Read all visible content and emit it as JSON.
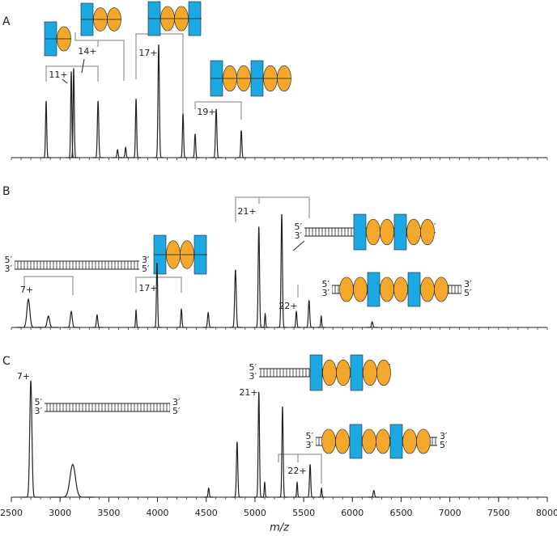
{
  "chart_data": [
    {
      "type": "spectrum",
      "panel_label": "A",
      "xlim": [
        2500,
        8000
      ],
      "ylim": [
        0,
        105
      ],
      "x": [
        2857,
        3115,
        3140,
        3390,
        3590,
        3673,
        3780,
        4012,
        4262,
        4386,
        4602,
        4860
      ],
      "values": [
        50,
        76,
        79,
        50,
        7,
        9,
        52,
        100,
        39,
        21,
        43,
        24
      ],
      "widths": [
        12,
        12,
        12,
        14,
        12,
        12,
        12,
        14,
        12,
        12,
        14,
        12
      ],
      "annotations": [
        "11+",
        "14+",
        "17+",
        "19+"
      ],
      "strand_labels": []
    },
    {
      "type": "spectrum",
      "panel_label": "B",
      "xlim": [
        2500,
        8000
      ],
      "ylim": [
        0,
        105
      ],
      "x": [
        2675,
        2880,
        3115,
        3380,
        3780,
        3995,
        4245,
        4520,
        4800,
        5040,
        5105,
        5275,
        5425,
        5555,
        5680,
        6203
      ],
      "values": [
        25,
        10,
        14,
        11,
        15,
        57,
        16,
        13,
        51,
        89,
        12,
        100,
        14,
        24,
        10,
        5
      ],
      "widths": [
        30,
        25,
        20,
        14,
        10,
        12,
        12,
        14,
        16,
        14,
        10,
        14,
        12,
        14,
        10,
        14
      ],
      "annotations": [
        "7+",
        "17+",
        "21+",
        "22+"
      ],
      "strand_labels": [
        [
          "5′",
          "3′",
          "3′",
          "5′"
        ],
        [
          "5′",
          "3′",
          "3′",
          "5′"
        ],
        [
          "5′",
          "3′",
          "3′",
          "5′"
        ]
      ]
    },
    {
      "type": "spectrum",
      "panel_label": "C",
      "xlim": [
        2500,
        8000
      ],
      "ylim": [
        0,
        105
      ],
      "x": [
        2700,
        3130,
        4525,
        4817,
        5040,
        5100,
        5283,
        5433,
        5566,
        5683,
        6220
      ],
      "values": [
        103,
        29,
        8,
        49,
        93,
        13,
        80,
        13,
        29,
        8,
        6
      ],
      "widths": [
        22,
        55,
        12,
        14,
        13,
        10,
        13,
        10,
        13,
        10,
        14
      ],
      "annotations": [
        "7+",
        "21+",
        "22+"
      ],
      "strand_labels": [
        [
          "5′",
          "3′",
          "3′",
          "5′"
        ],
        [
          "5′",
          "3′",
          "3′",
          "5′"
        ],
        [
          "5′",
          "3′",
          "3′",
          "5′"
        ]
      ],
      "xticks": [
        2500,
        3000,
        3500,
        4000,
        4500,
        5000,
        5500,
        6000,
        6500,
        7000,
        7500,
        8000
      ],
      "xlabel": "m/z"
    }
  ]
}
